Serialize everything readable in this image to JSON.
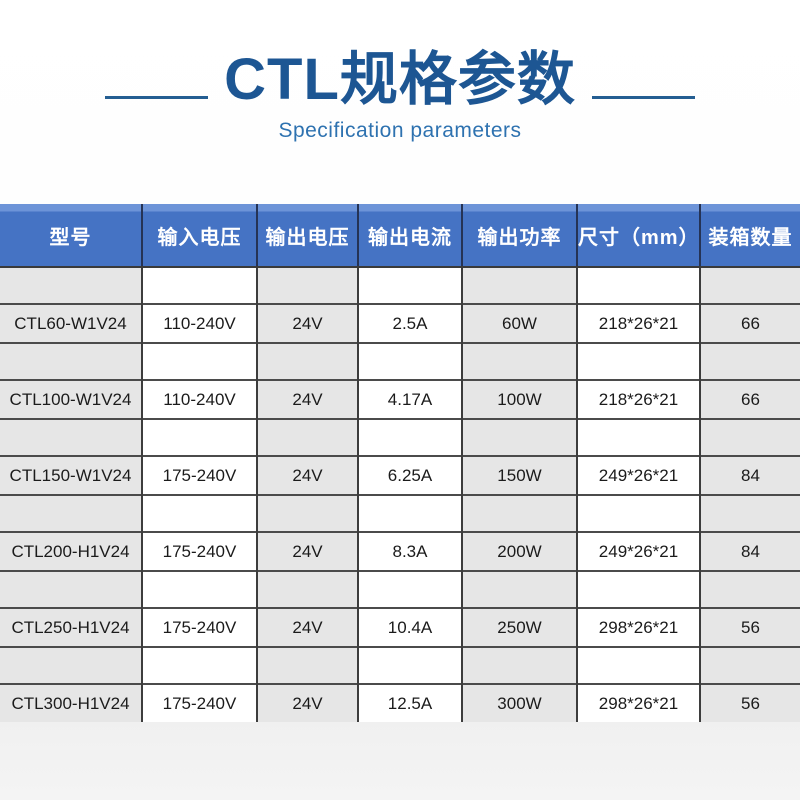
{
  "page": {
    "title": "CTL规格参数",
    "subtitle": "Specification parameters"
  },
  "table": {
    "columns": [
      {
        "key": "model",
        "label": "型号"
      },
      {
        "key": "input-voltage",
        "label": "输入电压"
      },
      {
        "key": "output-voltage",
        "label": "输出电压"
      },
      {
        "key": "output-current",
        "label": "输出电流"
      },
      {
        "key": "output-power",
        "label": "输出功率"
      },
      {
        "key": "dimensions",
        "label": "尺寸（mm）"
      },
      {
        "key": "packing-qty",
        "label": "装箱数量"
      }
    ],
    "rows": [
      [
        "CTL60-W1V24",
        "110-240V",
        "24V",
        "2.5A",
        "60W",
        "218*26*21",
        "66"
      ],
      [
        "CTL100-W1V24",
        "110-240V",
        "24V",
        "4.17A",
        "100W",
        "218*26*21",
        "66"
      ],
      [
        "CTL150-W1V24",
        "175-240V",
        "24V",
        "6.25A",
        "150W",
        "249*26*21",
        "84"
      ],
      [
        "CTL200-H1V24",
        "175-240V",
        "24V",
        "8.3A",
        "200W",
        "249*26*21",
        "84"
      ],
      [
        "CTL250-H1V24",
        "175-240V",
        "24V",
        "10.4A",
        "250W",
        "298*26*21",
        "56"
      ],
      [
        "CTL300-H1V24",
        "175-240V",
        "24V",
        "12.5A",
        "300W",
        "298*26*21",
        "56"
      ]
    ]
  },
  "colors": {
    "title": "#1d5693",
    "subtitle": "#2e72b0",
    "dash": "#245e92",
    "header_bg": "#4573c4",
    "header_text": "#ffffff",
    "stripe_gray": "#e6e6e6",
    "cell_white": "#ffffff"
  }
}
